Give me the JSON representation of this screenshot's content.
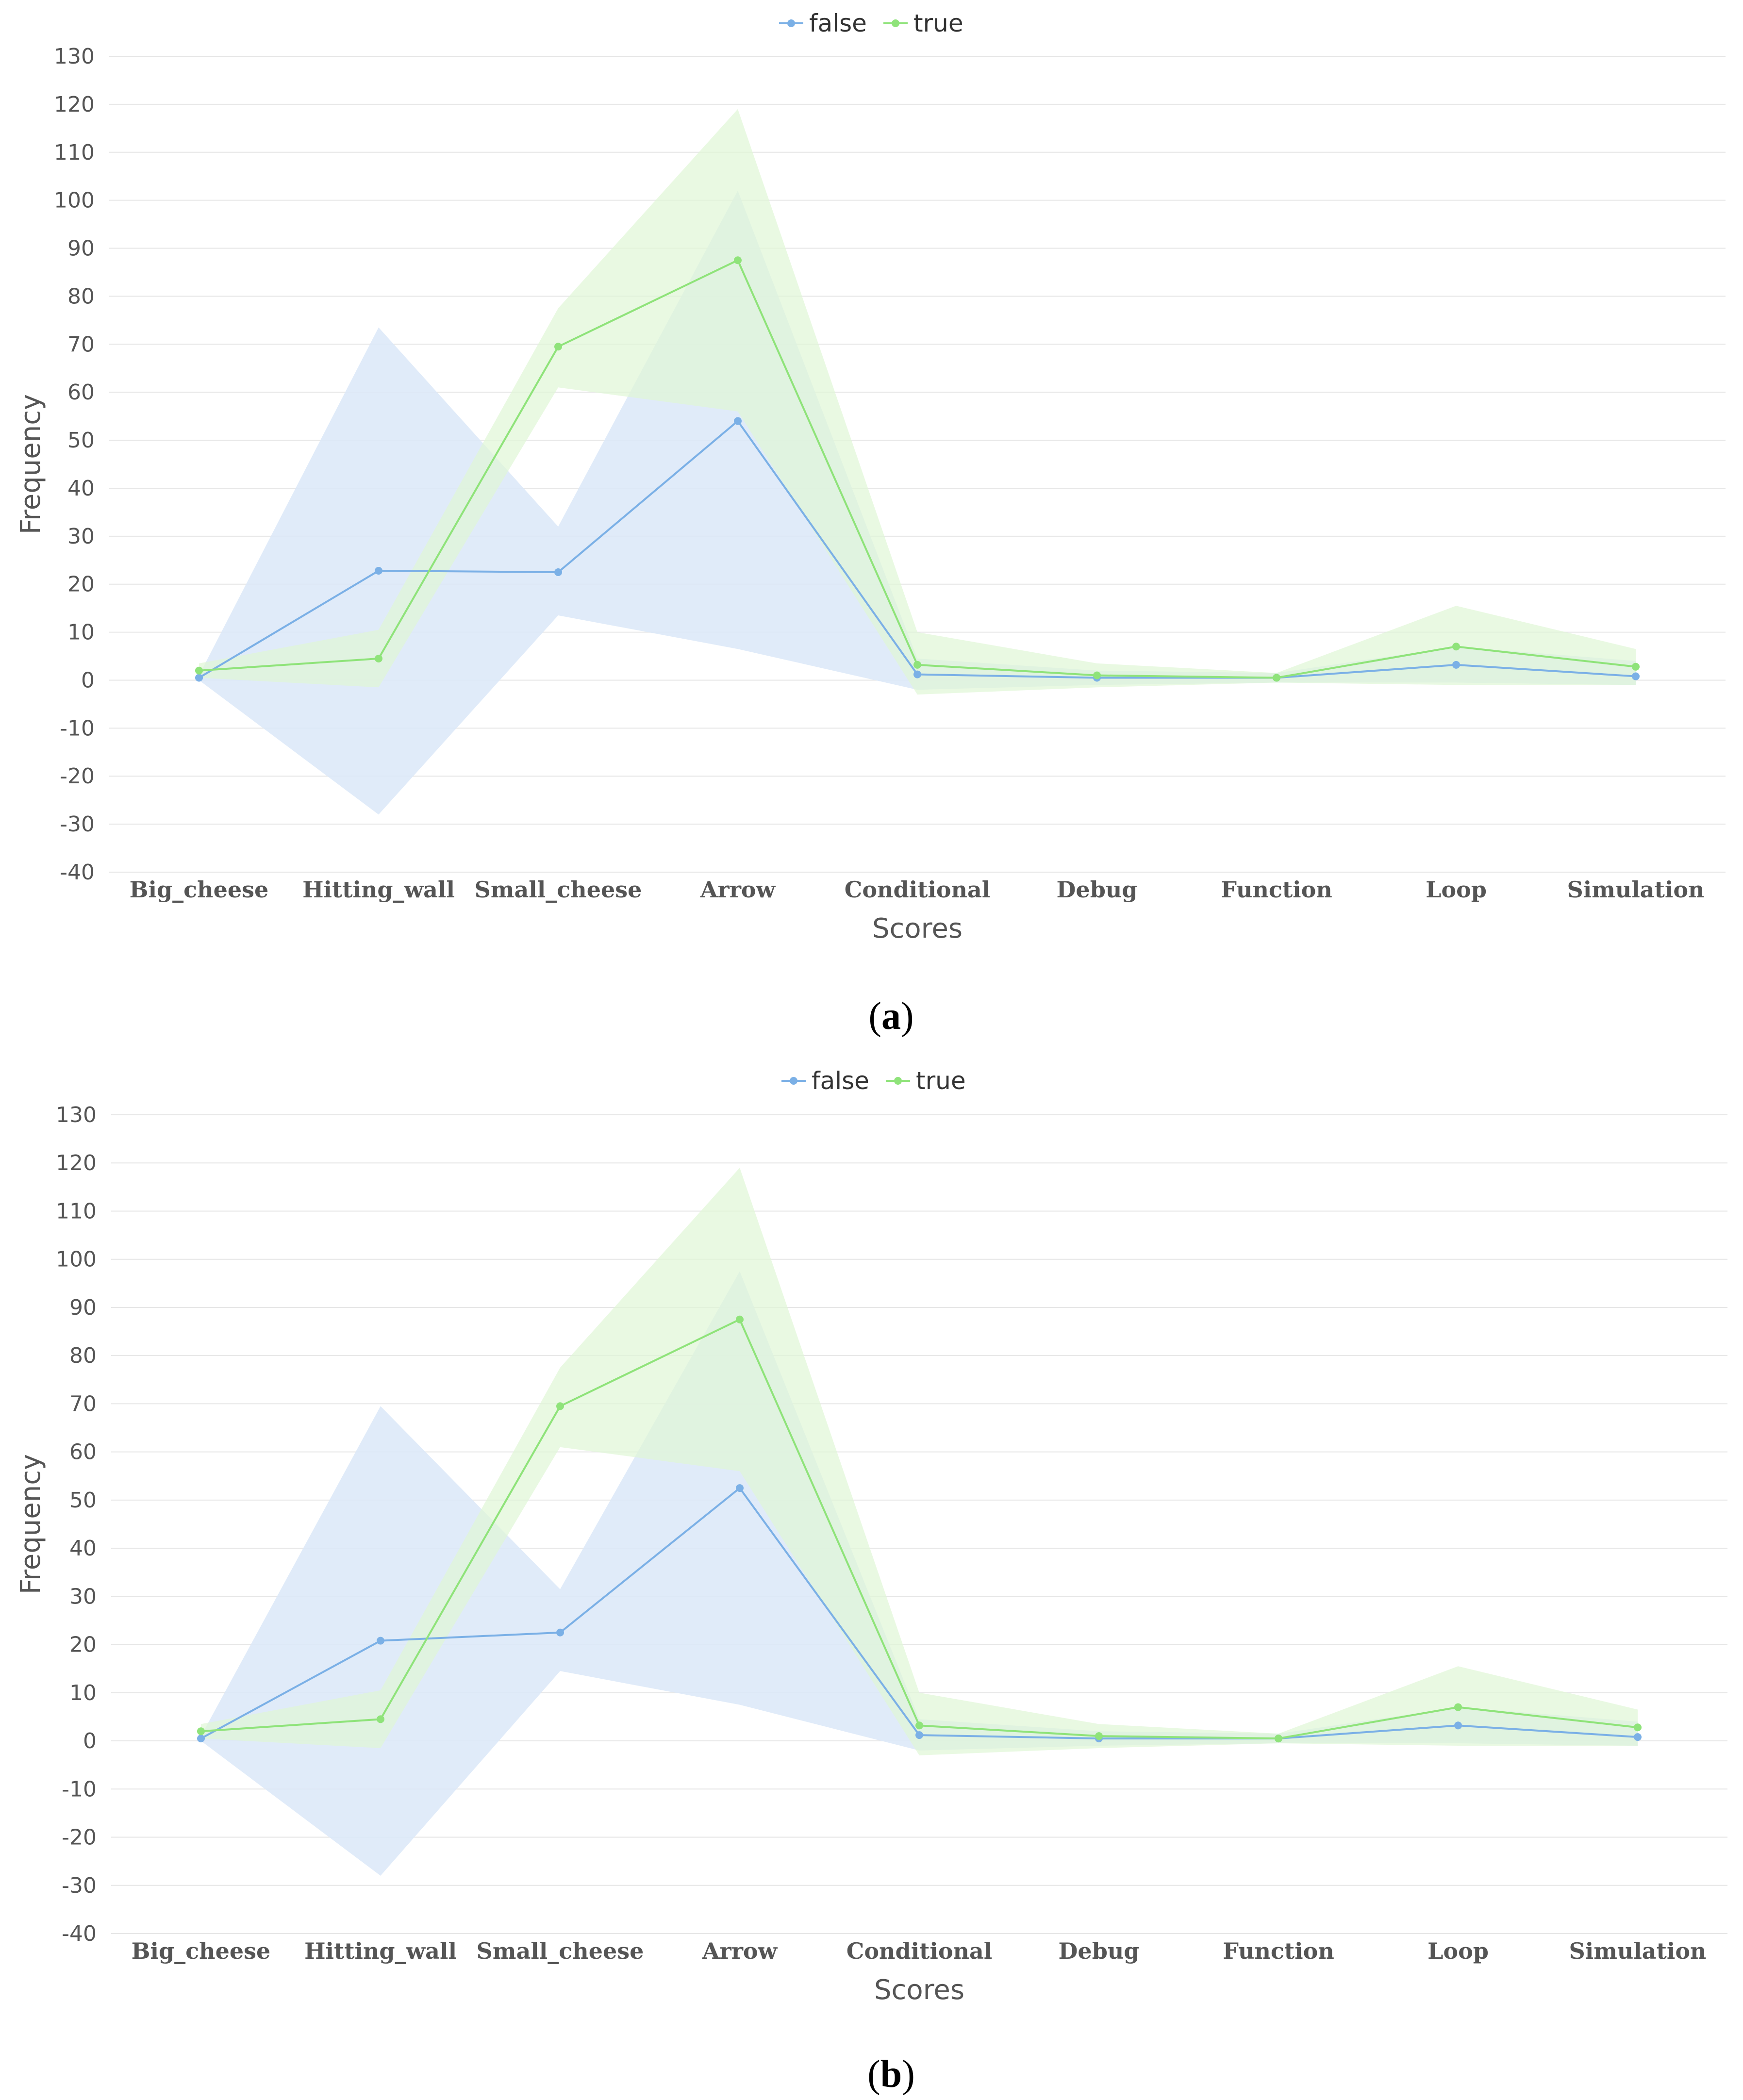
{
  "colors": {
    "false_line": "#7bb0e6",
    "false_band": "#dbe8f8",
    "true_line": "#8fe37a",
    "true_band": "#dff7d6",
    "grid": "#e6e6e6"
  },
  "chart_data": [
    {
      "type": "line",
      "panel_caption": "(a)",
      "caption_letter": "a",
      "xlabel": "Scores",
      "ylabel": "Frequency",
      "ylim": [
        -40,
        130
      ],
      "yticks": [
        130,
        120,
        110,
        100,
        90,
        80,
        70,
        60,
        50,
        40,
        30,
        20,
        10,
        0,
        -10,
        -20,
        -30,
        -40
      ],
      "grid": true,
      "legend_position": "top-center",
      "categories": [
        "Big_cheese",
        "Hitting_wall",
        "Small_cheese",
        "Arrow",
        "Conditional",
        "Debug",
        "Function",
        "Loop",
        "Simulation"
      ],
      "series": [
        {
          "name": "false",
          "values": [
            0.5,
            22.8,
            22.5,
            54,
            1.2,
            0.5,
            0.5,
            3.2,
            0.8
          ],
          "band_upper": [
            1,
            73.5,
            32,
            102,
            4.5,
            2,
            1.5,
            7,
            4
          ],
          "band_lower": [
            0,
            -28,
            13.5,
            6.5,
            -2,
            -1,
            -0.5,
            -0.5,
            -1
          ]
        },
        {
          "name": "true",
          "values": [
            2,
            4.5,
            69.5,
            87.5,
            3.2,
            1,
            0.5,
            7,
            2.8
          ],
          "band_upper": [
            3.5,
            10.5,
            77.5,
            119,
            10,
            3.5,
            1.5,
            15.5,
            6.5
          ],
          "band_lower": [
            0.5,
            -1.5,
            61,
            56,
            -3,
            -1.5,
            -0.5,
            -1,
            -1
          ]
        }
      ]
    },
    {
      "type": "line",
      "panel_caption": "(b)",
      "caption_letter": "b",
      "xlabel": "Scores",
      "ylabel": "Frequency",
      "ylim": [
        -40,
        130
      ],
      "yticks": [
        130,
        120,
        110,
        100,
        90,
        80,
        70,
        60,
        50,
        40,
        30,
        20,
        10,
        0,
        -10,
        -20,
        -30,
        -40
      ],
      "grid": true,
      "legend_position": "top-center",
      "categories": [
        "Big_cheese",
        "Hitting_wall",
        "Small_cheese",
        "Arrow",
        "Conditional",
        "Debug",
        "Function",
        "Loop",
        "Simulation"
      ],
      "series": [
        {
          "name": "false",
          "values": [
            0.5,
            20.8,
            22.5,
            52.5,
            1.2,
            0.5,
            0.5,
            3.2,
            0.8
          ],
          "band_upper": [
            1,
            69.5,
            31.5,
            97.5,
            4.5,
            2,
            1.5,
            7,
            4
          ],
          "band_lower": [
            0,
            -28,
            14.5,
            7.5,
            -2,
            -1,
            -0.5,
            -0.5,
            -1
          ]
        },
        {
          "name": "true",
          "values": [
            2,
            4.5,
            69.5,
            87.5,
            3.2,
            1,
            0.5,
            7,
            2.8
          ],
          "band_upper": [
            3.5,
            10.5,
            77.5,
            119,
            10,
            3.5,
            1.5,
            15.5,
            6.5
          ],
          "band_lower": [
            0.5,
            -1.5,
            61,
            56,
            -3,
            -1.5,
            -0.5,
            -1,
            -1
          ]
        }
      ]
    }
  ]
}
